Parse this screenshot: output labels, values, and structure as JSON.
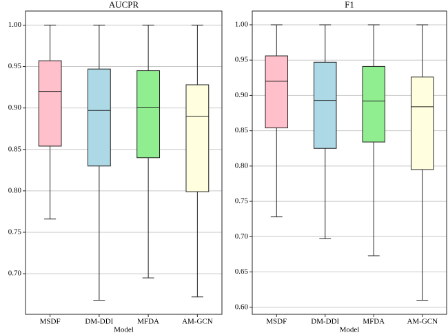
{
  "chart_data": [
    {
      "type": "box",
      "title": "AUCPR",
      "x_label": "Model",
      "categories": [
        "MSDF",
        "DM-DDI",
        "MFDA",
        "AM-GCN"
      ],
      "colors": [
        "#ffc0cb",
        "#add8e6",
        "#90ee90",
        "#ffffe0"
      ],
      "min": [
        0.766,
        0.668,
        0.695,
        0.672
      ],
      "q1": [
        0.854,
        0.83,
        0.84,
        0.799
      ],
      "median": [
        0.92,
        0.897,
        0.901,
        0.89
      ],
      "q3": [
        0.957,
        0.947,
        0.945,
        0.928
      ],
      "max": [
        1.0,
        1.0,
        1.0,
        1.0
      ],
      "ylim": [
        0.651,
        1.017
      ],
      "yticks": [
        {
          "value": 0.7,
          "label": "0.70"
        },
        {
          "value": 0.75,
          "label": "0.75"
        },
        {
          "value": 0.8,
          "label": "0.80"
        },
        {
          "value": 0.85,
          "label": "0.85"
        },
        {
          "value": 0.9,
          "label": "0.90"
        },
        {
          "value": 0.95,
          "label": "0.95"
        },
        {
          "value": 1.0,
          "label": "1.00"
        }
      ],
      "grid": true
    },
    {
      "type": "box",
      "title": "F1",
      "x_label": "Model",
      "categories": [
        "MSDF",
        "DM-DDI",
        "MFDA",
        "AM-GCN"
      ],
      "colors": [
        "#ffc0cb",
        "#add8e6",
        "#90ee90",
        "#ffffe0"
      ],
      "min": [
        0.728,
        0.697,
        0.673,
        0.61
      ],
      "q1": [
        0.854,
        0.825,
        0.834,
        0.795
      ],
      "median": [
        0.92,
        0.893,
        0.892,
        0.884
      ],
      "q3": [
        0.956,
        0.947,
        0.941,
        0.926
      ],
      "max": [
        1.0,
        1.0,
        1.0,
        1.0
      ],
      "ylim": [
        0.59,
        1.0195
      ],
      "yticks": [
        {
          "value": 0.6,
          "label": "0.60"
        },
        {
          "value": 0.65,
          "label": "0.65"
        },
        {
          "value": 0.7,
          "label": "0.70"
        },
        {
          "value": 0.75,
          "label": "0.75"
        },
        {
          "value": 0.8,
          "label": "0.80"
        },
        {
          "value": 0.85,
          "label": "0.85"
        },
        {
          "value": 0.9,
          "label": "0.90"
        },
        {
          "value": 0.95,
          "label": "0.95"
        },
        {
          "value": 1.0,
          "label": "1.00"
        }
      ],
      "grid": true
    }
  ]
}
